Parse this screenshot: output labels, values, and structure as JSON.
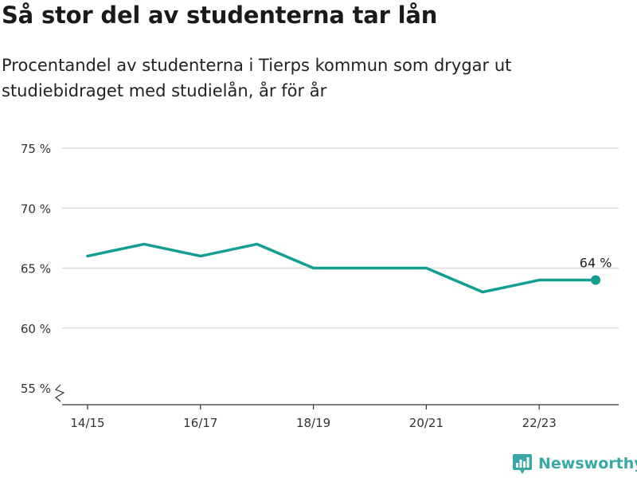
{
  "header": {
    "title": "Så stor del av studenterna tar lån",
    "subtitle": "Procentandel av studenterna i Tierps kommun som drygar ut studiebidraget med studielån, år för år"
  },
  "brand": {
    "name": "Newsworthy",
    "icon": "newsworthy-logo-icon",
    "color": "#3aa6a6"
  },
  "colors": {
    "line": "#139e94",
    "grid": "#dddddd",
    "axis": "#333333",
    "text": "#333333"
  },
  "chart_data": {
    "type": "line",
    "title": "Så stor del av studenterna tar lån",
    "subtitle": "Procentandel av studenterna i Tierps kommun som drygar ut studiebidraget med studielån, år för år",
    "xlabel": "",
    "ylabel": "",
    "categories": [
      "14/15",
      "15/16",
      "16/17",
      "17/18",
      "18/19",
      "19/20",
      "20/21",
      "21/22",
      "22/23",
      "23/24"
    ],
    "x_tick_labels": [
      "14/15",
      "16/17",
      "18/19",
      "20/21",
      "22/23"
    ],
    "series": [
      {
        "values": [
          66,
          67,
          66,
          67,
          65,
          65,
          65,
          63,
          64,
          64
        ]
      }
    ],
    "y_ticks": [
      55,
      60,
      65,
      70,
      75
    ],
    "y_tick_format": "{v} %",
    "ylim": [
      55,
      75
    ],
    "y_axis_break": true,
    "grid": "horizontal",
    "end_label": "64 %"
  }
}
